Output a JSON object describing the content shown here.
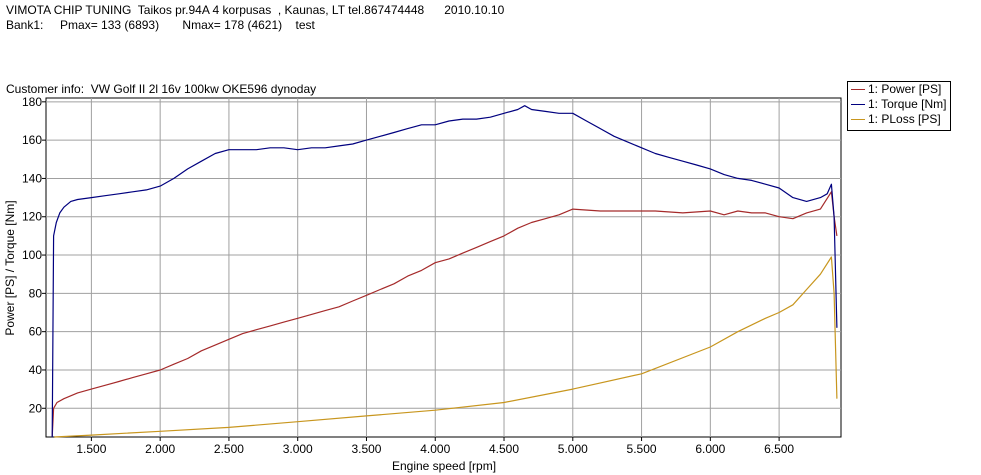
{
  "header": {
    "line1": "VIMOTA CHIP TUNING  Taikos pr.94A 4 korpusas  , Kaunas, LT tel.867474448      2010.10.10",
    "line2": "Bank1:     Pmax= 133 (6893)       Nmax= 178 (4621)    test",
    "customer": "Customer info:  VW Golf II 2l 16v 100kw OKE596 dynoday"
  },
  "chart_data": {
    "type": "line",
    "xlabel": "Engine speed [rpm]",
    "ylabel": "Power [PS] / Torque [Nm]",
    "xlim": [
      1170,
      6950
    ],
    "ylim": [
      5,
      182
    ],
    "x_ticks": [
      1500,
      2000,
      2500,
      3000,
      3500,
      4000,
      4500,
      5000,
      5500,
      6000,
      6500
    ],
    "x_tick_labels": [
      "1.500",
      "2.000",
      "2.500",
      "3.000",
      "3.500",
      "4.000",
      "4.500",
      "5.000",
      "5.500",
      "6.000",
      "6.500"
    ],
    "y_ticks": [
      20,
      40,
      60,
      80,
      100,
      120,
      140,
      160,
      180
    ],
    "y_tick_labels": [
      "20",
      "40",
      "60",
      "80",
      "100",
      "120",
      "140",
      "160",
      "180"
    ],
    "grid": true,
    "legend_position": "top-right",
    "series": [
      {
        "name": "1: Power [PS]",
        "color": "#a52a2a",
        "x": [
          1215,
          1225,
          1250,
          1300,
          1400,
          1500,
          1600,
          1700,
          1800,
          1900,
          2000,
          2100,
          2200,
          2300,
          2400,
          2500,
          2600,
          2700,
          2800,
          2900,
          3000,
          3100,
          3200,
          3300,
          3400,
          3500,
          3600,
          3700,
          3800,
          3900,
          4000,
          4100,
          4200,
          4300,
          4400,
          4500,
          4600,
          4700,
          4800,
          4900,
          5000,
          5200,
          5400,
          5600,
          5800,
          6000,
          6100,
          6200,
          6300,
          6400,
          6500,
          6600,
          6700,
          6800,
          6880,
          6900,
          6920
        ],
        "y": [
          5,
          20,
          23,
          25,
          28,
          30,
          32,
          34,
          36,
          38,
          40,
          43,
          46,
          50,
          53,
          56,
          59,
          61,
          63,
          65,
          67,
          69,
          71,
          73,
          76,
          79,
          82,
          85,
          89,
          92,
          96,
          98,
          101,
          104,
          107,
          110,
          114,
          117,
          119,
          121,
          124,
          123,
          123,
          123,
          122,
          123,
          121,
          123,
          122,
          122,
          120,
          119,
          122,
          124,
          133,
          120,
          110
        ]
      },
      {
        "name": "1: Torque [Nm]",
        "color": "#00007f",
        "x": [
          1215,
          1225,
          1245,
          1270,
          1300,
          1350,
          1400,
          1500,
          1600,
          1700,
          1800,
          1900,
          2000,
          2100,
          2200,
          2300,
          2400,
          2500,
          2600,
          2700,
          2800,
          2900,
          3000,
          3100,
          3200,
          3300,
          3400,
          3500,
          3600,
          3700,
          3800,
          3900,
          4000,
          4100,
          4200,
          4300,
          4400,
          4500,
          4600,
          4650,
          4700,
          4800,
          4900,
          5000,
          5100,
          5200,
          5300,
          5400,
          5500,
          5600,
          5700,
          5800,
          5900,
          6000,
          6100,
          6200,
          6300,
          6400,
          6500,
          6600,
          6700,
          6800,
          6850,
          6880,
          6900,
          6920
        ],
        "y": [
          5,
          110,
          117,
          122,
          125,
          128,
          129,
          130,
          131,
          132,
          133,
          134,
          136,
          140,
          145,
          149,
          153,
          155,
          155,
          155,
          156,
          156,
          155,
          156,
          156,
          157,
          158,
          160,
          162,
          164,
          166,
          168,
          168,
          170,
          171,
          171,
          172,
          174,
          176,
          178,
          176,
          175,
          174,
          174,
          170,
          166,
          162,
          159,
          156,
          153,
          151,
          149,
          147,
          145,
          142,
          140,
          139,
          137,
          135,
          130,
          128,
          130,
          132,
          137,
          120,
          62
        ]
      },
      {
        "name": "1: PLoss [PS]",
        "color": "#c8961e",
        "x": [
          1230,
          1500,
          2000,
          2500,
          3000,
          3500,
          4000,
          4500,
          5000,
          5500,
          6000,
          6200,
          6400,
          6500,
          6600,
          6700,
          6800,
          6880,
          6900,
          6920
        ],
        "y": [
          5,
          6,
          8,
          10,
          13,
          16,
          19,
          23,
          30,
          38,
          52,
          60,
          67,
          70,
          74,
          82,
          90,
          99,
          80,
          25
        ]
      }
    ]
  }
}
